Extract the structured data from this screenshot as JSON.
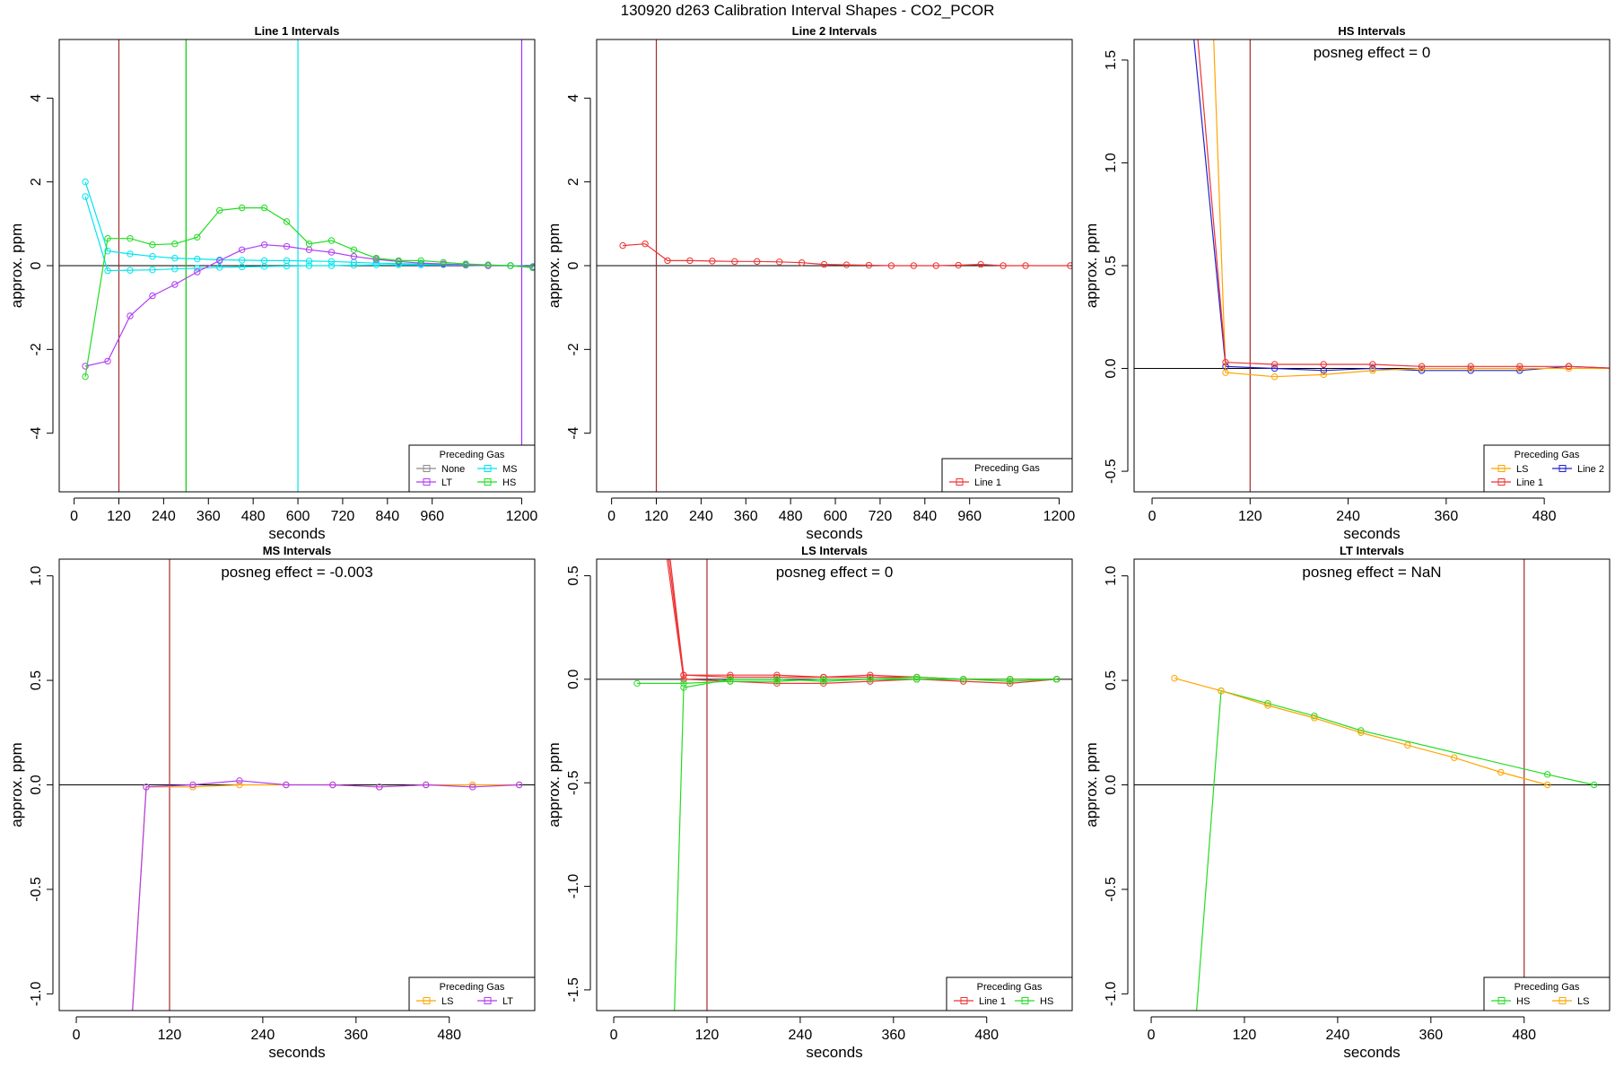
{
  "page": {
    "title": "130920  d263   Calibration Interval Shapes - CO2_PCOR"
  },
  "chart_data": [
    {
      "type": "line",
      "title": "Line 1 Intervals",
      "xlabel": "seconds",
      "ylabel": "approx. ppm",
      "xlim": [
        -40,
        1235
      ],
      "ylim": [
        -5.4,
        5.4
      ],
      "xticks": [
        0,
        120,
        240,
        360,
        480,
        600,
        720,
        840,
        960,
        1200
      ],
      "yticks": [
        -4,
        -2,
        0,
        2,
        4
      ],
      "hline": 0,
      "vlines": [
        {
          "x": 120,
          "color": "#a52a2a"
        },
        {
          "x": 300,
          "color": "#00cc00"
        },
        {
          "x": 600,
          "color": "#00e5ee"
        },
        {
          "x": 1200,
          "color": "#9b30ff"
        }
      ],
      "legend": {
        "title": "Preceding Gas",
        "position": "bottom-right",
        "cols": 2,
        "items": [
          {
            "label": "None",
            "color": "#8c8c8c"
          },
          {
            "label": "MS",
            "color": "#00e5ee"
          },
          {
            "label": "LT",
            "color": "#b03df2"
          },
          {
            "label": "HS",
            "color": "#22dd22"
          }
        ]
      },
      "series": [
        {
          "name": "MS",
          "color": "#00e5ee",
          "x": [
            30,
            90,
            150,
            210,
            270,
            330,
            390,
            450,
            510,
            570,
            630,
            690,
            750,
            810,
            870,
            930,
            990,
            1050,
            1110,
            1170,
            1230
          ],
          "y": [
            2.0,
            0.35,
            0.28,
            0.22,
            0.18,
            0.16,
            0.14,
            0.13,
            0.12,
            0.12,
            0.11,
            0.1,
            0.08,
            0.06,
            0.05,
            0.04,
            0.03,
            0.02,
            0.01,
            0.0,
            -0.02
          ]
        },
        {
          "name": "MS",
          "color": "#00e5ee",
          "x": [
            30,
            90,
            150,
            210,
            270,
            330,
            390,
            450,
            510,
            570,
            630,
            690,
            750,
            810,
            870,
            930,
            990,
            1050,
            1110,
            1170,
            1230
          ],
          "y": [
            1.65,
            -0.12,
            -0.11,
            -0.1,
            -0.08,
            -0.06,
            -0.04,
            -0.03,
            -0.02,
            -0.01,
            0.0,
            0.0,
            0.01,
            0.02,
            0.02,
            0.02,
            0.02,
            0.01,
            0.0,
            0.0,
            -0.02
          ]
        },
        {
          "name": "LT",
          "color": "#b03df2",
          "x": [
            30,
            90,
            150,
            210,
            270,
            330,
            390,
            450,
            510,
            570,
            630,
            690,
            750,
            810,
            870,
            930,
            990,
            1050,
            1110,
            1170,
            1230
          ],
          "y": [
            -2.4,
            -2.28,
            -1.2,
            -0.72,
            -0.45,
            -0.15,
            0.12,
            0.38,
            0.5,
            0.46,
            0.38,
            0.32,
            0.22,
            0.15,
            0.1,
            0.06,
            0.04,
            0.02,
            0.0,
            0.0,
            -0.03
          ]
        },
        {
          "name": "HS",
          "color": "#22dd22",
          "x": [
            30,
            90,
            150,
            210,
            270,
            330,
            390,
            450,
            510,
            570,
            630,
            690,
            750,
            810,
            870,
            930,
            990,
            1050,
            1110,
            1170,
            1230
          ],
          "y": [
            -2.65,
            0.65,
            0.65,
            0.5,
            0.52,
            0.68,
            1.32,
            1.38,
            1.38,
            1.05,
            0.52,
            0.6,
            0.38,
            0.18,
            0.12,
            0.12,
            0.08,
            0.04,
            0.02,
            0.0,
            -0.05
          ]
        }
      ]
    },
    {
      "type": "line",
      "title": "Line 2 Intervals",
      "xlabel": "seconds",
      "ylabel": "approx. ppm",
      "xlim": [
        -40,
        1235
      ],
      "ylim": [
        -5.4,
        5.4
      ],
      "xticks": [
        0,
        120,
        240,
        360,
        480,
        600,
        720,
        840,
        960,
        1200
      ],
      "yticks": [
        -4,
        -2,
        0,
        2,
        4
      ],
      "hline": 0,
      "vlines": [
        {
          "x": 120,
          "color": "#a52a2a"
        }
      ],
      "legend": {
        "title": "Preceding Gas",
        "position": "bottom-right",
        "cols": 1,
        "items": [
          {
            "label": "Line 1",
            "color": "#ee3333"
          }
        ]
      },
      "series": [
        {
          "name": "Line 1",
          "color": "#ee3333",
          "x": [
            30,
            90,
            150,
            210,
            270,
            330,
            390,
            450,
            510,
            570,
            630,
            690,
            750,
            810,
            870,
            930,
            990,
            1050,
            1110,
            1230
          ],
          "y": [
            0.48,
            0.52,
            0.12,
            0.12,
            0.11,
            0.1,
            0.1,
            0.09,
            0.07,
            0.03,
            0.02,
            0.01,
            0.0,
            0.0,
            0.0,
            0.01,
            0.03,
            0.0,
            0.0,
            0.0
          ]
        }
      ]
    },
    {
      "type": "line",
      "title": "HS Intervals",
      "annotation": "posneg effect = 0",
      "xlabel": "seconds",
      "ylabel": "approx. ppm",
      "xlim": [
        -22,
        560
      ],
      "ylim": [
        -0.6,
        1.6
      ],
      "xticks": [
        0,
        120,
        240,
        360,
        480
      ],
      "yticks": [
        -0.5,
        0.0,
        0.5,
        1.0,
        1.5
      ],
      "hline": 0,
      "vlines": [
        {
          "x": 120,
          "color": "#a52a2a"
        }
      ],
      "legend": {
        "title": "Preceding Gas",
        "position": "bottom-right",
        "cols": 2,
        "items": [
          {
            "label": "LS",
            "color": "#ffa500"
          },
          {
            "label": "Line 2",
            "color": "#2222cc"
          },
          {
            "label": "Line 1",
            "color": "#ee3333"
          }
        ]
      },
      "series": [
        {
          "name": "Line 2",
          "color": "#2222cc",
          "x": [
            50,
            90,
            150,
            210,
            270,
            330,
            390,
            450,
            510,
            570
          ],
          "y": [
            1.65,
            0.01,
            0.0,
            -0.01,
            0.0,
            -0.01,
            -0.01,
            -0.01,
            0.01,
            0.0
          ]
        },
        {
          "name": "LS",
          "color": "#ffa500",
          "x": [
            75,
            90,
            150,
            210,
            270,
            330,
            390,
            450,
            510,
            570
          ],
          "y": [
            1.65,
            -0.02,
            -0.04,
            -0.03,
            -0.01,
            0.0,
            0.0,
            0.0,
            0.0,
            0.0
          ]
        },
        {
          "name": "Line 1",
          "color": "#ee3333",
          "x": [
            55,
            90,
            150,
            210,
            270,
            330,
            390,
            450,
            510,
            570
          ],
          "y": [
            1.65,
            0.03,
            0.02,
            0.02,
            0.02,
            0.01,
            0.01,
            0.01,
            0.01,
            0.0
          ]
        }
      ]
    },
    {
      "type": "line",
      "title": "MS Intervals",
      "annotation": "posneg effect = -0.003",
      "xlabel": "seconds",
      "ylabel": "approx. ppm",
      "xlim": [
        -22,
        590
      ],
      "ylim": [
        -1.08,
        1.08
      ],
      "xticks": [
        0,
        120,
        240,
        360,
        480
      ],
      "yticks": [
        -1.0,
        -0.5,
        0.0,
        0.5,
        1.0
      ],
      "hline": 0,
      "vlines": [
        {
          "x": 120,
          "color": "#a52a2a"
        }
      ],
      "legend": {
        "title": "Preceding Gas",
        "position": "bottom-right",
        "cols": 2,
        "items": [
          {
            "label": "LS",
            "color": "#ffa500"
          },
          {
            "label": "LT",
            "color": "#b03df2"
          }
        ]
      },
      "series": [
        {
          "name": "LS",
          "color": "#ffa500",
          "x": [
            72,
            90,
            150,
            210,
            270,
            330,
            390,
            450,
            510,
            570
          ],
          "y": [
            -1.1,
            -0.01,
            -0.01,
            0.0,
            0.0,
            0.0,
            -0.01,
            0.0,
            0.0,
            0.0
          ]
        },
        {
          "name": "LT",
          "color": "#b03df2",
          "x": [
            72,
            90,
            150,
            210,
            270,
            330,
            390,
            450,
            510,
            570
          ],
          "y": [
            -1.1,
            -0.01,
            0.0,
            0.02,
            0.0,
            0.0,
            -0.01,
            0.0,
            -0.01,
            0.0
          ]
        }
      ]
    },
    {
      "type": "line",
      "title": "LS Intervals",
      "annotation": "posneg effect = 0",
      "xlabel": "seconds",
      "ylabel": "approx. ppm",
      "xlim": [
        -22,
        590
      ],
      "ylim": [
        -1.6,
        0.58
      ],
      "xticks": [
        0,
        120,
        240,
        360,
        480
      ],
      "yticks": [
        -1.5,
        -1.0,
        -0.5,
        0.0,
        0.5
      ],
      "hline": 0,
      "vlines": [
        {
          "x": 120,
          "color": "#a52a2a"
        }
      ],
      "legend": {
        "title": "Preceding Gas",
        "position": "bottom-right",
        "cols": 2,
        "items": [
          {
            "label": "Line 1",
            "color": "#ee3333"
          },
          {
            "label": "HS",
            "color": "#22dd22"
          }
        ]
      },
      "series": [
        {
          "name": "Line 1",
          "color": "#ee3333",
          "x": [
            70,
            90,
            150,
            210,
            270,
            330,
            390,
            450,
            510,
            570
          ],
          "y": [
            0.6,
            0.02,
            0.01,
            0.01,
            0.01,
            0.01,
            0.01,
            0.0,
            0.0,
            0.0
          ]
        },
        {
          "name": "Line 1",
          "color": "#ee3333",
          "x": [
            68,
            90,
            150,
            210,
            270,
            330,
            390,
            450,
            510,
            570
          ],
          "y": [
            0.6,
            0.0,
            -0.01,
            -0.02,
            -0.02,
            -0.01,
            0.0,
            -0.01,
            -0.02,
            0.0
          ]
        },
        {
          "name": "Line 1",
          "color": "#ee3333",
          "x": [
            72,
            90,
            150,
            210,
            270,
            330,
            390,
            450,
            510,
            570
          ],
          "y": [
            0.6,
            0.02,
            0.02,
            0.02,
            0.01,
            0.02,
            0.01,
            0.0,
            0.0,
            0.0
          ]
        },
        {
          "name": "HS",
          "color": "#22dd22",
          "x": [
            30,
            90,
            150,
            210,
            270,
            330,
            390,
            450,
            510,
            570
          ],
          "y": [
            -0.02,
            -0.02,
            -0.01,
            -0.01,
            0.0,
            0.0,
            0.0,
            0.0,
            0.0,
            0.0
          ]
        },
        {
          "name": "HS",
          "color": "#22dd22",
          "x": [
            78,
            90,
            150,
            210,
            270,
            330,
            390,
            450,
            510,
            570
          ],
          "y": [
            -1.62,
            -0.04,
            0.0,
            0.0,
            -0.01,
            0.0,
            0.01,
            0.0,
            -0.01,
            0.0
          ]
        }
      ]
    },
    {
      "type": "line",
      "title": "LT Intervals",
      "annotation": "posneg effect = NaN",
      "xlabel": "seconds",
      "ylabel": "approx. ppm",
      "xlim": [
        -22,
        590
      ],
      "ylim": [
        -1.08,
        1.08
      ],
      "xticks": [
        0,
        120,
        240,
        360,
        480
      ],
      "yticks": [
        -1.0,
        -0.5,
        0.0,
        0.5,
        1.0
      ],
      "hline": 0,
      "vlines": [
        {
          "x": 480,
          "color": "#a52a2a"
        }
      ],
      "legend": {
        "title": "Preceding Gas",
        "position": "bottom-right",
        "cols": 2,
        "items": [
          {
            "label": "HS",
            "color": "#22dd22"
          },
          {
            "label": "LS",
            "color": "#ffa500"
          }
        ]
      },
      "series": [
        {
          "name": "HS",
          "color": "#22dd22",
          "x": [
            58,
            90,
            150,
            210,
            270,
            510,
            570
          ],
          "y": [
            -1.1,
            0.45,
            0.39,
            0.33,
            0.26,
            0.05,
            0.0
          ]
        },
        {
          "name": "LS",
          "color": "#ffa500",
          "x": [
            30,
            90,
            150,
            210,
            270,
            330,
            390,
            450,
            510
          ],
          "y": [
            0.51,
            0.45,
            0.38,
            0.32,
            0.25,
            0.19,
            0.13,
            0.06,
            0.0
          ]
        }
      ]
    }
  ]
}
